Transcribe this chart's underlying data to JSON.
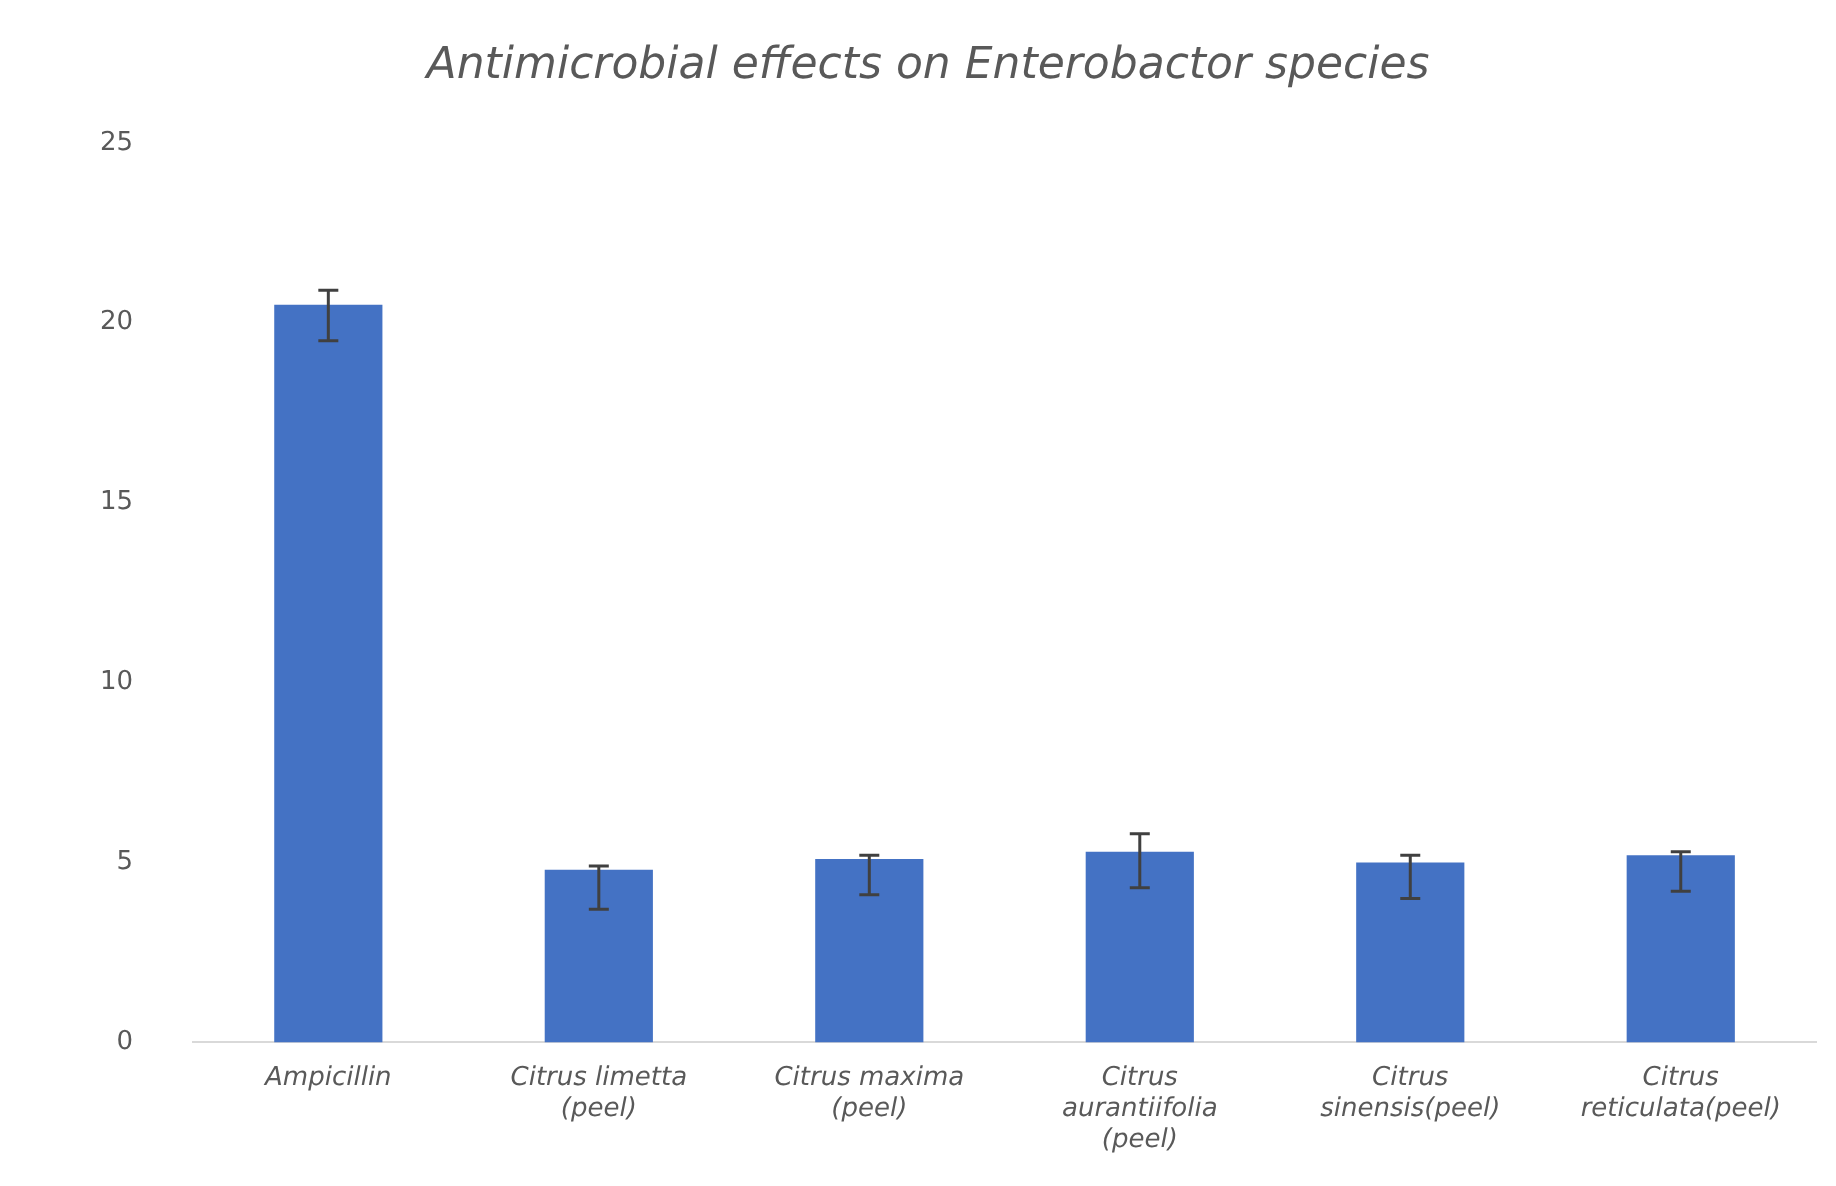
{
  "chart_data": {
    "type": "bar",
    "title": "Antimicrobial effects on Enterobactor species",
    "categories": [
      "Ampicillin",
      "Citrus limetta (peel)",
      "Citrus maxima (peel)",
      "Citrus aurantiifolia (peel)",
      "Citrus sinensis(peel)",
      "Citrus reticulata(peel)"
    ],
    "values": [
      20.5,
      4.8,
      5.1,
      5.3,
      5.0,
      5.2
    ],
    "errors": [
      [
        19.5,
        20.9
      ],
      [
        3.7,
        4.9
      ],
      [
        4.1,
        5.2
      ],
      [
        4.3,
        5.8
      ],
      [
        4.0,
        5.2
      ],
      [
        4.2,
        5.3
      ]
    ],
    "color": "#4472c4",
    "ylim": [
      0,
      25
    ],
    "yticks": [
      0,
      5,
      10,
      15,
      20,
      25
    ],
    "grid": false,
    "legend": false
  }
}
